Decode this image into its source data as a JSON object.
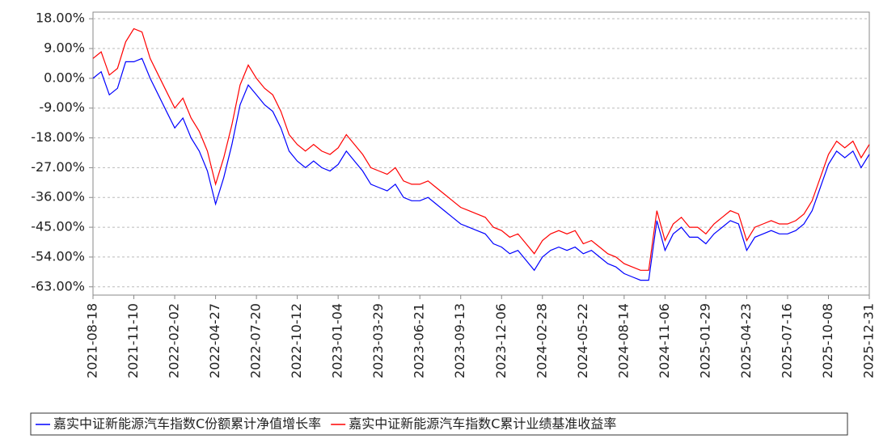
{
  "chart_data": {
    "type": "line",
    "categories": [
      "2021-08-18",
      null,
      null,
      null,
      null,
      "2021-11-10",
      null,
      null,
      null,
      null,
      "2022-02-02",
      null,
      null,
      null,
      null,
      "2022-04-27",
      null,
      null,
      null,
      null,
      "2022-07-20",
      null,
      null,
      null,
      null,
      "2022-10-12",
      null,
      null,
      null,
      null,
      "2023-01-04",
      null,
      null,
      null,
      null,
      "2023-03-29",
      null,
      null,
      null,
      null,
      "2023-06-21",
      null,
      null,
      null,
      null,
      "2023-09-13",
      null,
      null,
      null,
      null,
      "2023-12-06",
      null,
      null,
      null,
      null,
      "2024-02-28",
      null,
      null,
      null,
      null,
      "2024-05-22",
      null,
      null,
      null,
      null,
      "2024-08-14",
      null,
      null,
      null,
      null,
      "2024-11-06",
      null,
      null,
      null,
      null,
      "2025-01-29",
      null,
      null,
      null,
      null,
      "2025-04-23",
      null,
      null,
      null,
      null,
      "2025-07-16",
      null,
      null,
      null,
      null,
      "2025-10-08",
      null,
      null,
      null,
      null,
      "2025-12-31"
    ],
    "series": [
      {
        "name": "嘉实中证新能源汽车指数C份额累计净值增长率",
        "color": "#0000ff",
        "values": [
          0,
          2,
          -5,
          -3,
          5,
          5,
          6,
          0,
          -5,
          -10,
          -15,
          -12,
          -18,
          -22,
          -28,
          -38,
          -30,
          -20,
          -8,
          -2,
          -5,
          -8,
          -10,
          -15,
          -22,
          -25,
          -27,
          -25,
          -27,
          -28,
          -26,
          -22,
          -25,
          -28,
          -32,
          -33,
          -34,
          -32,
          -36,
          -37,
          -37,
          -36,
          -38,
          -40,
          -42,
          -44,
          -45,
          -46,
          -47,
          -50,
          -51,
          -53,
          -52,
          -55,
          -58,
          -54,
          -52,
          -51,
          -52,
          -51,
          -53,
          -52,
          -54,
          -56,
          -57,
          -59,
          -60,
          -61,
          -61,
          -43,
          -52,
          -47,
          -45,
          -48,
          -48,
          -50,
          -47,
          -45,
          -43,
          -44,
          -52,
          -48,
          -47,
          -46,
          -47,
          -47,
          -46,
          -44,
          -40,
          -33,
          -26,
          -22,
          -24,
          -22,
          -27,
          -23
        ]
      },
      {
        "name": "嘉实中证新能源汽车指数C累计业绩基准收益率",
        "color": "#ff0000",
        "values": [
          6,
          8,
          1,
          3,
          11,
          15,
          14,
          6,
          1,
          -4,
          -9,
          -6,
          -12,
          -16,
          -22,
          -32,
          -24,
          -14,
          -2,
          4,
          0,
          -3,
          -5,
          -10,
          -17,
          -20,
          -22,
          -20,
          -22,
          -23,
          -21,
          -17,
          -20,
          -23,
          -27,
          -28,
          -29,
          -27,
          -31,
          -32,
          -32,
          -31,
          -33,
          -35,
          -37,
          -39,
          -40,
          -41,
          -42,
          -45,
          -46,
          -48,
          -47,
          -50,
          -53,
          -49,
          -47,
          -46,
          -47,
          -46,
          -50,
          -49,
          -51,
          -53,
          -54,
          -56,
          -57,
          -58,
          -58,
          -40,
          -49,
          -44,
          -42,
          -45,
          -45,
          -47,
          -44,
          -42,
          -40,
          -41,
          -49,
          -45,
          -44,
          -43,
          -44,
          -44,
          -43,
          -41,
          -37,
          -30,
          -23,
          -19,
          -21,
          -19,
          -24,
          -20
        ]
      }
    ],
    "ylim": [
      -65.5,
      20
    ],
    "yticks": [
      {
        "value": 18,
        "label": "18.00%"
      },
      {
        "value": 9,
        "label": "9.00%"
      },
      {
        "value": 0,
        "label": "0.00%"
      },
      {
        "value": -9,
        "label": "-9.00%"
      },
      {
        "value": -18,
        "label": "-18.00%"
      },
      {
        "value": -27,
        "label": "-27.00%"
      },
      {
        "value": -36,
        "label": "-36.00%"
      },
      {
        "value": -45,
        "label": "-45.00%"
      },
      {
        "value": -54,
        "label": "-54.00%"
      },
      {
        "value": -63,
        "label": "-63.00%"
      }
    ],
    "grid": true
  }
}
